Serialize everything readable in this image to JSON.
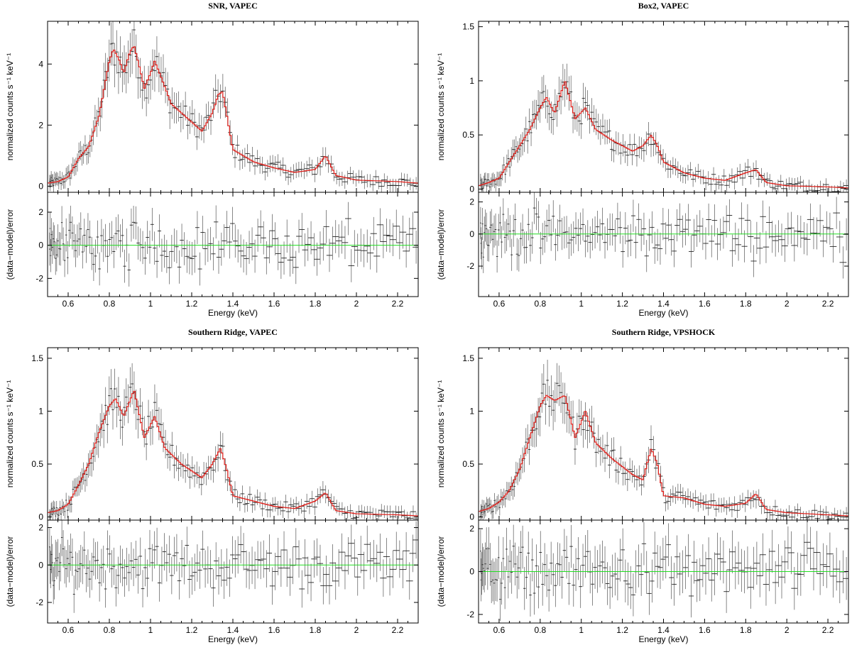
{
  "colors": {
    "model": "#e0201b",
    "zero_line": "#22dd22",
    "data": "#555555",
    "frame": "#000000"
  },
  "chart_data": [
    {
      "type": "line",
      "title": "SNR, VAPEC",
      "xlabel": "Energy (keV)",
      "ylabel_top": "normalized counts s⁻¹ keV⁻¹",
      "ylabel_bottom": "(data−model)/error",
      "xlim": [
        0.5,
        2.3
      ],
      "ylim_top": [
        -0.2,
        5.4
      ],
      "ylim_bottom": [
        -3.1,
        3.2
      ],
      "yticks_top": [
        "0",
        "2",
        "4"
      ],
      "yticks_bottom": [
        "-2",
        "0",
        "2"
      ],
      "xticks": [
        "0.6",
        "0.8",
        "1",
        "1.2",
        "1.4",
        "1.6",
        "1.8",
        "2",
        "2.2"
      ],
      "model": {
        "name": "VAPEC",
        "x": [
          0.5,
          0.55,
          0.6,
          0.65,
          0.7,
          0.75,
          0.8,
          0.82,
          0.85,
          0.87,
          0.9,
          0.92,
          0.95,
          0.97,
          1.0,
          1.02,
          1.05,
          1.1,
          1.2,
          1.25,
          1.3,
          1.33,
          1.35,
          1.4,
          1.5,
          1.6,
          1.7,
          1.8,
          1.85,
          1.9,
          2.0,
          2.2,
          2.3
        ],
        "y": [
          0.1,
          0.15,
          0.3,
          0.9,
          1.3,
          2.3,
          4.1,
          4.5,
          4.1,
          3.7,
          4.4,
          4.6,
          3.8,
          3.2,
          3.7,
          4.1,
          3.6,
          2.7,
          2.1,
          1.8,
          2.4,
          3.0,
          3.1,
          1.2,
          0.8,
          0.6,
          0.45,
          0.55,
          1.0,
          0.35,
          0.2,
          0.15,
          0.1
        ]
      },
      "residual_band": 1.4
    },
    {
      "type": "line",
      "title": "Box2, VAPEC",
      "xlabel": "Energy (keV)",
      "ylabel_top": "normalized counts s⁻¹ keV⁻¹",
      "ylabel_bottom": "(data−model)/error",
      "xlim": [
        0.5,
        2.3
      ],
      "ylim_top": [
        -0.03,
        1.55
      ],
      "ylim_bottom": [
        -3.9,
        2.6
      ],
      "yticks_top": [
        "0",
        "0.5",
        "1",
        "1.5"
      ],
      "yticks_bottom": [
        "-2",
        "0",
        "2"
      ],
      "xticks": [
        "0.6",
        "0.8",
        "1",
        "1.2",
        "1.4",
        "1.6",
        "1.8",
        "2",
        "2.2"
      ],
      "model": {
        "name": "VAPEC",
        "x": [
          0.5,
          0.55,
          0.6,
          0.65,
          0.7,
          0.75,
          0.8,
          0.83,
          0.87,
          0.92,
          0.97,
          1.02,
          1.07,
          1.15,
          1.25,
          1.3,
          1.34,
          1.37,
          1.4,
          1.5,
          1.6,
          1.7,
          1.8,
          1.85,
          1.9,
          2.0,
          2.2,
          2.3
        ],
        "y": [
          0.03,
          0.06,
          0.1,
          0.25,
          0.4,
          0.55,
          0.75,
          0.85,
          0.7,
          1.0,
          0.65,
          0.75,
          0.55,
          0.45,
          0.35,
          0.4,
          0.5,
          0.4,
          0.25,
          0.15,
          0.1,
          0.08,
          0.15,
          0.18,
          0.06,
          0.03,
          0.02,
          0.01
        ]
      },
      "residual_band": 1.3
    },
    {
      "type": "line",
      "title": "Southern Ridge, VAPEC",
      "xlabel": "Energy (keV)",
      "ylabel_top": "normalized counts s⁻¹ keV⁻¹",
      "ylabel_bottom": "(data−model)/error",
      "xlim": [
        0.5,
        2.3
      ],
      "ylim_top": [
        -0.03,
        1.6
      ],
      "ylim_bottom": [
        -3.1,
        2.4
      ],
      "yticks_top": [
        "0",
        "0.5",
        "1",
        "1.5"
      ],
      "yticks_bottom": [
        "-2",
        "0",
        "2"
      ],
      "xticks": [
        "0.6",
        "0.8",
        "1",
        "1.2",
        "1.4",
        "1.6",
        "1.8",
        "2",
        "2.2"
      ],
      "model": {
        "name": "VAPEC",
        "x": [
          0.5,
          0.55,
          0.6,
          0.65,
          0.7,
          0.75,
          0.8,
          0.83,
          0.87,
          0.92,
          0.97,
          1.02,
          1.07,
          1.15,
          1.25,
          1.3,
          1.34,
          1.37,
          1.4,
          1.5,
          1.6,
          1.7,
          1.8,
          1.85,
          1.9,
          2.0,
          2.2,
          2.3
        ],
        "y": [
          0.04,
          0.06,
          0.12,
          0.3,
          0.5,
          0.8,
          1.05,
          1.12,
          0.95,
          1.2,
          0.75,
          0.95,
          0.65,
          0.5,
          0.37,
          0.5,
          0.65,
          0.45,
          0.2,
          0.15,
          0.1,
          0.08,
          0.15,
          0.23,
          0.06,
          0.03,
          0.02,
          0.01
        ]
      },
      "residual_band": 1.2
    },
    {
      "type": "line",
      "title": "Southern Ridge, VPSHOCK",
      "xlabel": "Energy (keV)",
      "ylabel_top": "normalized counts s⁻¹ keV⁻¹",
      "ylabel_bottom": "(data−model)/error",
      "xlim": [
        0.5,
        2.3
      ],
      "ylim_top": [
        -0.03,
        1.6
      ],
      "ylim_bottom": [
        -2.4,
        2.4
      ],
      "yticks_top": [
        "0",
        "0.5",
        "1",
        "1.5"
      ],
      "yticks_bottom": [
        "-2",
        "0",
        "2"
      ],
      "xticks": [
        "0.6",
        "0.8",
        "1",
        "1.2",
        "1.4",
        "1.6",
        "1.8",
        "2",
        "2.2"
      ],
      "model": {
        "name": "VPSHOCK",
        "x": [
          0.5,
          0.55,
          0.6,
          0.65,
          0.7,
          0.75,
          0.8,
          0.83,
          0.87,
          0.92,
          0.97,
          1.02,
          1.07,
          1.15,
          1.25,
          1.3,
          1.34,
          1.37,
          1.4,
          1.5,
          1.6,
          1.7,
          1.8,
          1.85,
          1.9,
          2.0,
          2.2,
          2.3
        ],
        "y": [
          0.05,
          0.08,
          0.14,
          0.25,
          0.45,
          0.75,
          1.05,
          1.15,
          1.1,
          1.15,
          0.75,
          1.0,
          0.7,
          0.55,
          0.4,
          0.35,
          0.65,
          0.5,
          0.2,
          0.18,
          0.12,
          0.1,
          0.13,
          0.22,
          0.07,
          0.04,
          0.02,
          0.01
        ]
      },
      "residual_band": 1.2
    }
  ]
}
